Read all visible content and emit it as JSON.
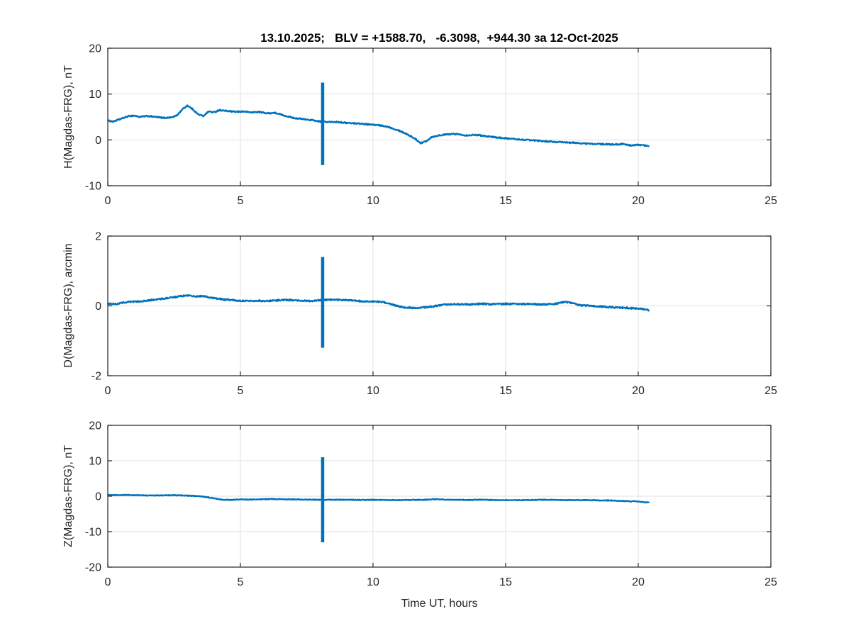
{
  "figure": {
    "title": "13.10.2025;   BLV = +1588.70,   -6.3098,  +944.30 за 12-Oct-2025",
    "xlabel": "Time UT, hours",
    "background": "#ffffff"
  },
  "colors": {
    "line": "#0072BD",
    "grid": "#e0e0e0",
    "axis": "#262626",
    "tick_text": "#262626",
    "title_text": "#000000"
  },
  "chart_data": [
    {
      "type": "line",
      "ylabel": "H(Magdas-FRG), nT",
      "xlim": [
        0,
        25
      ],
      "ylim": [
        -10,
        20
      ],
      "xticks": [
        0,
        5,
        10,
        15,
        20,
        25
      ],
      "yticks": [
        -10,
        0,
        10,
        20
      ],
      "grid": true,
      "noise": 0.13,
      "spike": {
        "x": 8.1,
        "ymin": -5.5,
        "ymax": 12.5
      },
      "series": [
        {
          "name": "H",
          "points": [
            [
              0,
              4.2
            ],
            [
              0.2,
              4.0
            ],
            [
              0.5,
              4.6
            ],
            [
              0.8,
              5.2
            ],
            [
              1.0,
              5.3
            ],
            [
              1.2,
              5.0
            ],
            [
              1.5,
              5.2
            ],
            [
              1.8,
              5.0
            ],
            [
              2.1,
              4.8
            ],
            [
              2.4,
              4.9
            ],
            [
              2.6,
              5.3
            ],
            [
              2.8,
              6.6
            ],
            [
              3.0,
              7.5
            ],
            [
              3.2,
              6.7
            ],
            [
              3.4,
              5.6
            ],
            [
              3.6,
              5.2
            ],
            [
              3.8,
              6.2
            ],
            [
              4.0,
              6.0
            ],
            [
              4.2,
              6.5
            ],
            [
              4.5,
              6.3
            ],
            [
              4.8,
              6.1
            ],
            [
              5.1,
              6.2
            ],
            [
              5.4,
              6.0
            ],
            [
              5.7,
              6.1
            ],
            [
              6.0,
              5.8
            ],
            [
              6.3,
              5.9
            ],
            [
              6.6,
              5.4
            ],
            [
              7.0,
              4.8
            ],
            [
              7.4,
              4.5
            ],
            [
              7.7,
              4.3
            ],
            [
              8.0,
              4.0
            ],
            [
              8.3,
              3.9
            ],
            [
              8.7,
              3.9
            ],
            [
              9.0,
              3.7
            ],
            [
              9.4,
              3.6
            ],
            [
              9.8,
              3.4
            ],
            [
              10.2,
              3.2
            ],
            [
              10.6,
              2.8
            ],
            [
              11.0,
              2.0
            ],
            [
              11.3,
              1.2
            ],
            [
              11.6,
              0.2
            ],
            [
              11.8,
              -0.7
            ],
            [
              12.0,
              -0.3
            ],
            [
              12.2,
              0.6
            ],
            [
              12.5,
              1.0
            ],
            [
              12.8,
              1.2
            ],
            [
              13.1,
              1.3
            ],
            [
              13.5,
              1.0
            ],
            [
              13.9,
              1.1
            ],
            [
              14.3,
              0.8
            ],
            [
              14.7,
              0.5
            ],
            [
              15.1,
              0.3
            ],
            [
              15.5,
              0.1
            ],
            [
              16.0,
              -0.1
            ],
            [
              16.5,
              -0.3
            ],
            [
              17.0,
              -0.5
            ],
            [
              17.5,
              -0.6
            ],
            [
              18.0,
              -0.8
            ],
            [
              18.5,
              -0.9
            ],
            [
              19.0,
              -1.0
            ],
            [
              19.4,
              -0.9
            ],
            [
              19.7,
              -1.2
            ],
            [
              20.0,
              -1.1
            ],
            [
              20.4,
              -1.3
            ]
          ]
        }
      ]
    },
    {
      "type": "line",
      "ylabel": "D(Magdas-FRG), arcmin",
      "xlim": [
        0,
        25
      ],
      "ylim": [
        -2,
        2
      ],
      "xticks": [
        0,
        5,
        10,
        15,
        20,
        25
      ],
      "yticks": [
        -2,
        0,
        2
      ],
      "grid": true,
      "noise": 0.02,
      "spike": {
        "x": 8.1,
        "ymin": -1.2,
        "ymax": 1.4
      },
      "series": [
        {
          "name": "D",
          "points": [
            [
              0,
              0.07
            ],
            [
              0.3,
              0.05
            ],
            [
              0.6,
              0.1
            ],
            [
              1.0,
              0.12
            ],
            [
              1.4,
              0.14
            ],
            [
              1.8,
              0.18
            ],
            [
              2.2,
              0.22
            ],
            [
              2.6,
              0.26
            ],
            [
              3.0,
              0.3
            ],
            [
              3.3,
              0.27
            ],
            [
              3.6,
              0.28
            ],
            [
              4.0,
              0.22
            ],
            [
              4.4,
              0.18
            ],
            [
              4.8,
              0.16
            ],
            [
              5.2,
              0.14
            ],
            [
              5.6,
              0.15
            ],
            [
              6.0,
              0.14
            ],
            [
              6.4,
              0.16
            ],
            [
              6.8,
              0.17
            ],
            [
              7.2,
              0.15
            ],
            [
              7.6,
              0.14
            ],
            [
              8.0,
              0.16
            ],
            [
              8.4,
              0.18
            ],
            [
              8.8,
              0.17
            ],
            [
              9.2,
              0.16
            ],
            [
              9.6,
              0.13
            ],
            [
              10.0,
              0.13
            ],
            [
              10.4,
              0.1
            ],
            [
              10.8,
              0.02
            ],
            [
              11.2,
              -0.05
            ],
            [
              11.6,
              -0.06
            ],
            [
              12.0,
              -0.04
            ],
            [
              12.4,
              0.0
            ],
            [
              12.8,
              0.04
            ],
            [
              13.2,
              0.05
            ],
            [
              13.6,
              0.04
            ],
            [
              14.0,
              0.06
            ],
            [
              14.5,
              0.05
            ],
            [
              15.0,
              0.06
            ],
            [
              15.5,
              0.05
            ],
            [
              16.0,
              0.05
            ],
            [
              16.5,
              0.04
            ],
            [
              16.9,
              0.06
            ],
            [
              17.2,
              0.12
            ],
            [
              17.5,
              0.08
            ],
            [
              17.8,
              0.02
            ],
            [
              18.2,
              0.0
            ],
            [
              18.6,
              -0.02
            ],
            [
              19.0,
              -0.04
            ],
            [
              19.4,
              -0.05
            ],
            [
              19.8,
              -0.07
            ],
            [
              20.1,
              -0.08
            ],
            [
              20.4,
              -0.12
            ]
          ]
        }
      ]
    },
    {
      "type": "line",
      "ylabel": "Z(Magdas-FRG), nT",
      "xlim": [
        0,
        25
      ],
      "ylim": [
        -20,
        20
      ],
      "xticks": [
        0,
        5,
        10,
        15,
        20,
        25
      ],
      "yticks": [
        -20,
        -10,
        0,
        10,
        20
      ],
      "grid": true,
      "noise": 0.1,
      "spike": {
        "x": 8.1,
        "ymin": -13,
        "ymax": 11
      },
      "series": [
        {
          "name": "Z",
          "points": [
            [
              0,
              0.4
            ],
            [
              0.4,
              0.3
            ],
            [
              0.8,
              0.35
            ],
            [
              1.2,
              0.25
            ],
            [
              1.6,
              0.2
            ],
            [
              2.0,
              0.25
            ],
            [
              2.4,
              0.3
            ],
            [
              2.8,
              0.2
            ],
            [
              3.2,
              0.1
            ],
            [
              3.6,
              -0.1
            ],
            [
              4.0,
              -0.6
            ],
            [
              4.3,
              -0.95
            ],
            [
              4.6,
              -1.05
            ],
            [
              5.0,
              -0.9
            ],
            [
              5.4,
              -0.95
            ],
            [
              5.8,
              -0.85
            ],
            [
              6.2,
              -0.8
            ],
            [
              6.6,
              -0.85
            ],
            [
              7.0,
              -0.9
            ],
            [
              7.5,
              -0.95
            ],
            [
              8.0,
              -1.0
            ],
            [
              8.5,
              -1.0
            ],
            [
              9.0,
              -1.0
            ],
            [
              9.5,
              -1.05
            ],
            [
              10.0,
              -1.0
            ],
            [
              10.5,
              -1.1
            ],
            [
              11.0,
              -1.1
            ],
            [
              11.5,
              -1.05
            ],
            [
              12.0,
              -1.0
            ],
            [
              12.3,
              -0.85
            ],
            [
              12.6,
              -0.95
            ],
            [
              13.0,
              -1.0
            ],
            [
              13.5,
              -1.05
            ],
            [
              14.0,
              -1.0
            ],
            [
              14.5,
              -1.05
            ],
            [
              15.0,
              -1.1
            ],
            [
              15.5,
              -1.1
            ],
            [
              16.0,
              -1.05
            ],
            [
              16.5,
              -1.0
            ],
            [
              17.0,
              -1.05
            ],
            [
              17.5,
              -1.1
            ],
            [
              18.0,
              -1.1
            ],
            [
              18.5,
              -1.15
            ],
            [
              19.0,
              -1.2
            ],
            [
              19.5,
              -1.4
            ],
            [
              20.0,
              -1.5
            ],
            [
              20.4,
              -1.8
            ]
          ]
        }
      ]
    }
  ]
}
